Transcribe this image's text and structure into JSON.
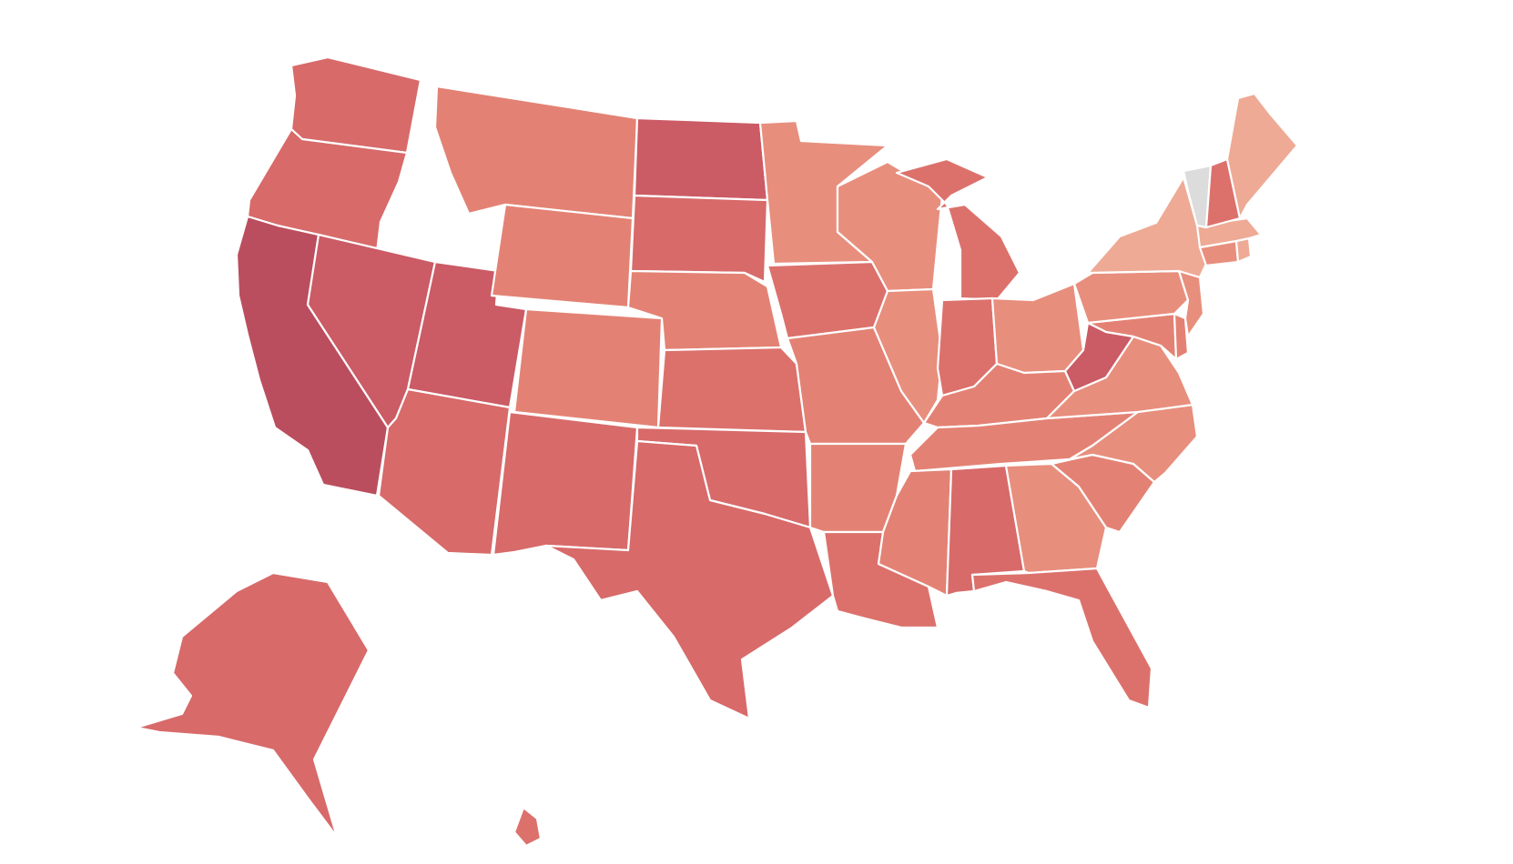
{
  "map": {
    "type": "choropleth",
    "region": "United States",
    "legend": "none",
    "labels_shown": false,
    "no_data_color": "#dcdcdc",
    "border_color": "#ffffff",
    "palette": {
      "level_1": "#eeaa95",
      "level_2": "#e88e7d",
      "level_3": "#e38274",
      "level_4": "#dc716c",
      "level_5": "#d86a6a",
      "level_6": "#cb5b65",
      "level_7": "#c35062",
      "level_8": "#bb4e5e"
    },
    "states": [
      {
        "code": "WA",
        "level": 5
      },
      {
        "code": "OR",
        "level": 5
      },
      {
        "code": "CA",
        "level": 8
      },
      {
        "code": "NV",
        "level": 6
      },
      {
        "code": "UT",
        "level": 6
      },
      {
        "code": "AZ",
        "level": 5
      },
      {
        "code": "MT",
        "level": 3
      },
      {
        "code": "WY",
        "level": 3
      },
      {
        "code": "CO",
        "level": 3
      },
      {
        "code": "NM",
        "level": 5
      },
      {
        "code": "ND",
        "level": 6
      },
      {
        "code": "SD",
        "level": 5
      },
      {
        "code": "NE",
        "level": 3
      },
      {
        "code": "KS",
        "level": 4
      },
      {
        "code": "OK",
        "level": 5
      },
      {
        "code": "TX",
        "level": 5
      },
      {
        "code": "MN",
        "level": 2
      },
      {
        "code": "IA",
        "level": 4
      },
      {
        "code": "MO",
        "level": 3
      },
      {
        "code": "AR",
        "level": 3
      },
      {
        "code": "LA",
        "level": 4
      },
      {
        "code": "WI",
        "level": 2
      },
      {
        "code": "IL",
        "level": 2
      },
      {
        "code": "MI",
        "level": 4
      },
      {
        "code": "IN",
        "level": 4
      },
      {
        "code": "OH",
        "level": 2
      },
      {
        "code": "KY",
        "level": 3
      },
      {
        "code": "TN",
        "level": 3
      },
      {
        "code": "MS",
        "level": 3
      },
      {
        "code": "AL",
        "level": 5
      },
      {
        "code": "GA",
        "level": 2
      },
      {
        "code": "FL",
        "level": 4
      },
      {
        "code": "SC",
        "level": 3
      },
      {
        "code": "NC",
        "level": 2
      },
      {
        "code": "VA",
        "level": 2
      },
      {
        "code": "WV",
        "level": 6
      },
      {
        "code": "MD",
        "level": 3
      },
      {
        "code": "DE",
        "level": 3
      },
      {
        "code": "PA",
        "level": 2
      },
      {
        "code": "NJ",
        "level": 2
      },
      {
        "code": "NY",
        "level": 1
      },
      {
        "code": "CT",
        "level": 2
      },
      {
        "code": "RI",
        "level": 1
      },
      {
        "code": "MA",
        "level": 1
      },
      {
        "code": "VT",
        "level": 0
      },
      {
        "code": "NH",
        "level": 4
      },
      {
        "code": "ME",
        "level": 1
      },
      {
        "code": "AK",
        "level": 5
      },
      {
        "code": "HI",
        "level": 4
      }
    ]
  }
}
